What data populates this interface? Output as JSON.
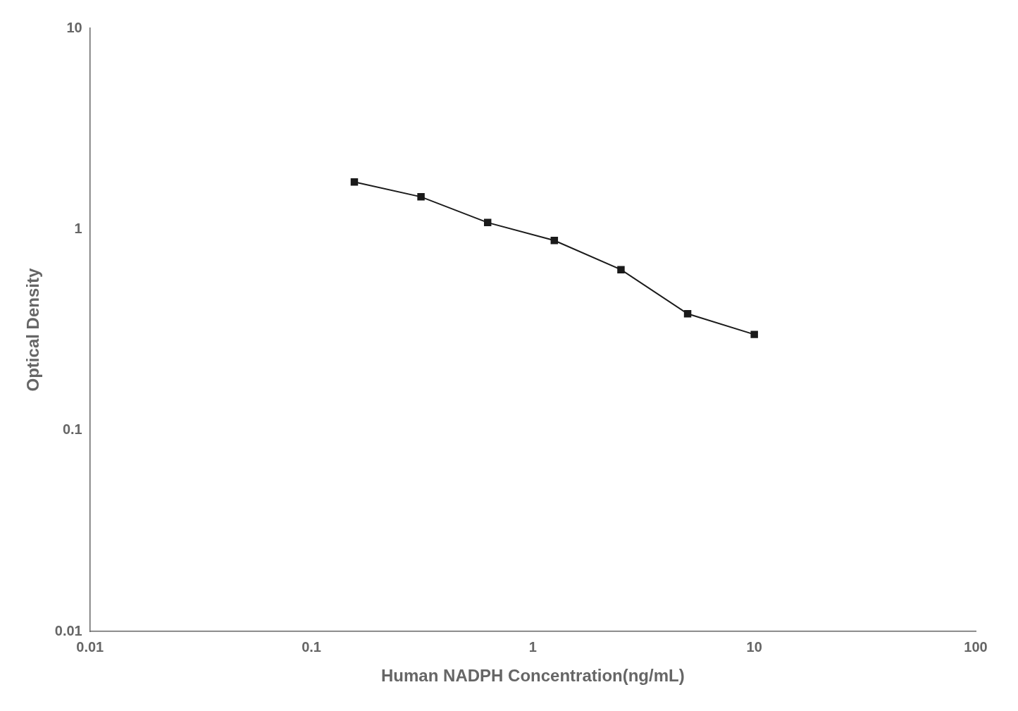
{
  "chart_data": {
    "type": "line",
    "x": [
      0.15625,
      0.3125,
      0.625,
      1.25,
      2.5,
      5.0,
      10.0
    ],
    "values": [
      1.72,
      1.45,
      1.08,
      0.88,
      0.63,
      0.38,
      0.3
    ],
    "xlabel": "Human NADPH Concentration(ng/mL)",
    "ylabel": "Optical Density",
    "xlim": [
      0.01,
      100
    ],
    "ylim": [
      0.01,
      10
    ],
    "xticks": [
      0.01,
      0.1,
      1,
      10,
      100
    ],
    "yticks": [
      0.01,
      0.1,
      1,
      10
    ],
    "log": true,
    "grid": false,
    "color": "#1a1a1a",
    "marker": "square"
  }
}
